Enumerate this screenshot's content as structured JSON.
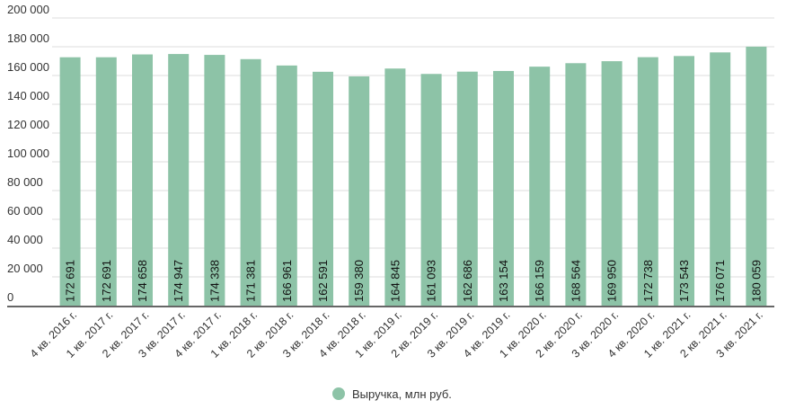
{
  "chart_data": {
    "type": "bar",
    "categories": [
      "4 кв. 2016 г.",
      "1 кв. 2017 г.",
      "2 кв. 2017 г.",
      "3 кв. 2017 г.",
      "4 кв. 2017 г.",
      "1 кв. 2018 г.",
      "2 кв. 2018 г.",
      "3 кв. 2018 г.",
      "4 кв. 2018 г.",
      "1 кв. 2019 г.",
      "2 кв. 2019 г.",
      "3 кв. 2019 г.",
      "4 кв. 2019 г.",
      "1 кв. 2020 г.",
      "2 кв. 2020 г.",
      "3 кв. 2020 г.",
      "4 кв. 2020 г.",
      "1 кв. 2021 г.",
      "2 кв. 2021 г.",
      "3 кв. 2021 г."
    ],
    "series": [
      {
        "name": "Выручка, млн руб.",
        "values": [
          172691,
          172691,
          174658,
          174947,
          174338,
          171381,
          166961,
          162591,
          159380,
          164845,
          161093,
          162686,
          163154,
          166159,
          168564,
          169950,
          172738,
          173543,
          176071,
          180059
        ],
        "labels": [
          "172 691",
          "172 691",
          "174 658",
          "174 947",
          "174 338",
          "171 381",
          "166 961",
          "162 591",
          "159 380",
          "164 845",
          "161 093",
          "162 686",
          "163 154",
          "166 159",
          "168 564",
          "169 950",
          "172 738",
          "173 543",
          "176 071",
          "180 059"
        ]
      }
    ],
    "ylim": [
      0,
      200000
    ],
    "y_ticks": [
      "0",
      "20 000",
      "40 000",
      "60 000",
      "80 000",
      "100 000",
      "120 000",
      "140 000",
      "160 000",
      "180 000",
      "200 000"
    ],
    "grid": true,
    "legend_position": "bottom",
    "colors": {
      "bar": "#8dc3a7",
      "grid": "#dddddd",
      "axis": "#333333"
    }
  }
}
